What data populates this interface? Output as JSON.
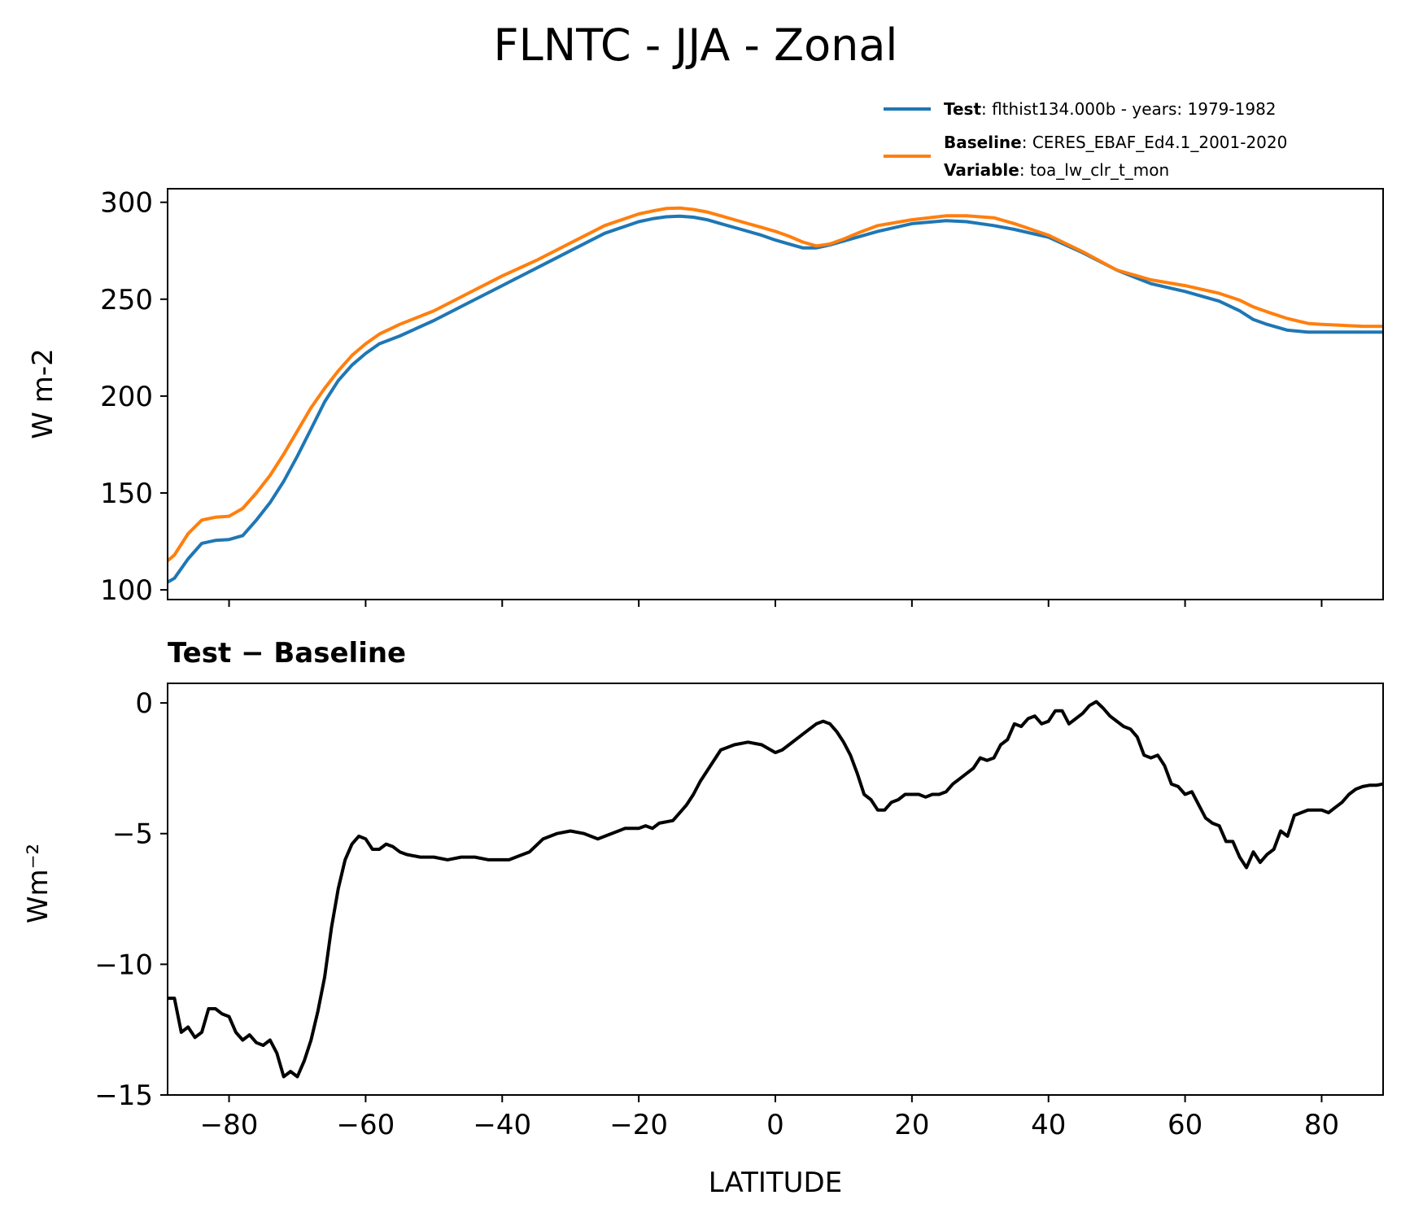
{
  "title": "FLNTC - JJA - Zonal",
  "legend": {
    "test": {
      "key": "Test",
      "text": ": flthist134.000b - years: 1979-1982"
    },
    "baseline": {
      "key": "Baseline",
      "text": ": CERES_EBAF_Ed4.1_2001-2020"
    },
    "variable": {
      "key": "Variable",
      "text": ": toa_lw_clr_t_mon"
    }
  },
  "colors": {
    "test": "#1f77b4",
    "baseline": "#ff7f0e",
    "diff": "#000000"
  },
  "chart_data": [
    {
      "type": "line",
      "title": "",
      "xlabel": "",
      "ylabel": "W m-2",
      "xlim": [
        -89,
        89
      ],
      "ylim": [
        95,
        307
      ],
      "yticks": [
        100,
        150,
        200,
        250,
        300
      ],
      "xticks": [
        -80,
        -60,
        -40,
        -20,
        0,
        20,
        40,
        60,
        80
      ],
      "legend_position": "above-right",
      "grid": false,
      "x": [
        -89,
        -88,
        -86,
        -84,
        -82,
        -80,
        -78,
        -76,
        -74,
        -72,
        -70,
        -68,
        -66,
        -64,
        -62,
        -60,
        -58,
        -55,
        -50,
        -45,
        -40,
        -35,
        -30,
        -25,
        -20,
        -18,
        -16,
        -14,
        -12,
        -10,
        -8,
        -5,
        -2,
        0,
        2,
        4,
        6,
        8,
        10,
        12,
        15,
        20,
        25,
        28,
        32,
        35,
        40,
        45,
        50,
        55,
        60,
        65,
        68,
        70,
        72,
        75,
        78,
        80,
        83,
        86,
        89
      ],
      "series": [
        {
          "name": "Test",
          "values": [
            104,
            106,
            116,
            124,
            125.5,
            126,
            128,
            136,
            145,
            156,
            169,
            183,
            197,
            208,
            216,
            222,
            227,
            231,
            239,
            248,
            257,
            266,
            275,
            284,
            290,
            291.5,
            292.5,
            292.8,
            292.3,
            291,
            289,
            286,
            283,
            280.5,
            278.5,
            276.5,
            276.5,
            278,
            280,
            282,
            285,
            289,
            290.5,
            290,
            288,
            286,
            282,
            274,
            265,
            258,
            254,
            249,
            244,
            239.5,
            237,
            234,
            233,
            233,
            233,
            233,
            233
          ]
        },
        {
          "name": "Baseline",
          "values": [
            115,
            118,
            129,
            136,
            137.5,
            138,
            142,
            150,
            159,
            170,
            182,
            194,
            204,
            213,
            221,
            227,
            232,
            237,
            244,
            253,
            262,
            270,
            279,
            288,
            294,
            295.5,
            296.8,
            297,
            296.3,
            295,
            293,
            290,
            287,
            285,
            282.5,
            279.5,
            277.5,
            278.5,
            281,
            284,
            288,
            291,
            293,
            293,
            292,
            289,
            283,
            274.5,
            265,
            260,
            257,
            253,
            249.5,
            246,
            243.5,
            240,
            237.5,
            237,
            236.5,
            236,
            236
          ]
        }
      ]
    },
    {
      "type": "line",
      "title": "Test − Baseline",
      "xlabel": "LATITUDE",
      "ylabel": "Wm⁻²",
      "xlim": [
        -89,
        89
      ],
      "ylim": [
        -15,
        0.75
      ],
      "yticks": [
        0,
        -5,
        -10,
        -15
      ],
      "yticklabels": [
        "0",
        "−5",
        "−10",
        "−15"
      ],
      "xticks": [
        -80,
        -60,
        -40,
        -20,
        0,
        20,
        40,
        60,
        80
      ],
      "xticklabels": [
        "−80",
        "−60",
        "−40",
        "−20",
        "0",
        "20",
        "40",
        "60",
        "80"
      ],
      "grid": false,
      "x": [
        -89,
        -88,
        -87,
        -86,
        -85,
        -84,
        -83,
        -82,
        -81,
        -80,
        -79,
        -78,
        -77,
        -76,
        -75,
        -74,
        -73,
        -72,
        -71,
        -70,
        -69,
        -68,
        -67,
        -66,
        -65,
        -64,
        -63,
        -62,
        -61,
        -60,
        -59,
        -58,
        -57,
        -56,
        -55,
        -54,
        -52,
        -50,
        -48,
        -46,
        -44,
        -42,
        -40,
        -39,
        -38,
        -36,
        -34,
        -32,
        -30,
        -28,
        -26,
        -24,
        -22,
        -20,
        -19,
        -18,
        -17,
        -15,
        -13,
        -12,
        -11,
        -10,
        -8,
        -6,
        -4,
        -2,
        0,
        1,
        2,
        4,
        6,
        7,
        8,
        9,
        10,
        11,
        12,
        13,
        14,
        15,
        16,
        17,
        18,
        19,
        20,
        21,
        22,
        23,
        24,
        25,
        26,
        27,
        28,
        29,
        30,
        31,
        32,
        33,
        34,
        35,
        36,
        37,
        38,
        39,
        40,
        41,
        42,
        43,
        44,
        45,
        46,
        47,
        48,
        49,
        50,
        51,
        52,
        53,
        54,
        55,
        56,
        57,
        58,
        59,
        60,
        61,
        62,
        63,
        64,
        65,
        66,
        67,
        68,
        69,
        70,
        71,
        72,
        73,
        74,
        75,
        76,
        77,
        78,
        79,
        80,
        81,
        82,
        83,
        84,
        85,
        86,
        87,
        88,
        89
      ],
      "series": [
        {
          "name": "",
          "values": [
            -11.3,
            -11.3,
            -12.6,
            -12.4,
            -12.8,
            -12.6,
            -11.7,
            -11.7,
            -11.9,
            -12.0,
            -12.6,
            -12.9,
            -12.7,
            -13.0,
            -13.1,
            -12.9,
            -13.4,
            -14.3,
            -14.1,
            -14.3,
            -13.7,
            -12.9,
            -11.8,
            -10.5,
            -8.6,
            -7.1,
            -6.0,
            -5.4,
            -5.1,
            -5.2,
            -5.6,
            -5.6,
            -5.4,
            -5.5,
            -5.7,
            -5.8,
            -5.9,
            -5.9,
            -6.0,
            -5.9,
            -5.9,
            -6.0,
            -6.0,
            -6.0,
            -5.9,
            -5.7,
            -5.2,
            -5.0,
            -4.9,
            -5.0,
            -5.2,
            -5.0,
            -4.8,
            -4.8,
            -4.7,
            -4.8,
            -4.6,
            -4.5,
            -3.9,
            -3.5,
            -3.0,
            -2.6,
            -1.8,
            -1.6,
            -1.5,
            -1.6,
            -1.9,
            -1.8,
            -1.6,
            -1.2,
            -0.8,
            -0.7,
            -0.8,
            -1.1,
            -1.5,
            -2.0,
            -2.7,
            -3.5,
            -3.7,
            -4.1,
            -4.1,
            -3.8,
            -3.7,
            -3.5,
            -3.5,
            -3.5,
            -3.6,
            -3.5,
            -3.5,
            -3.4,
            -3.1,
            -2.9,
            -2.7,
            -2.5,
            -2.1,
            -2.2,
            -2.1,
            -1.6,
            -1.4,
            -0.8,
            -0.9,
            -0.6,
            -0.5,
            -0.8,
            -0.7,
            -0.3,
            -0.3,
            -0.8,
            -0.6,
            -0.4,
            -0.1,
            0.05,
            -0.2,
            -0.5,
            -0.7,
            -0.9,
            -1.0,
            -1.3,
            -2.0,
            -2.1,
            -2.0,
            -2.4,
            -3.1,
            -3.2,
            -3.5,
            -3.4,
            -3.9,
            -4.4,
            -4.6,
            -4.7,
            -5.3,
            -5.3,
            -5.9,
            -6.3,
            -5.7,
            -6.1,
            -5.8,
            -5.6,
            -4.9,
            -5.1,
            -4.3,
            -4.2,
            -4.1,
            -4.1,
            -4.1,
            -4.2,
            -4.0,
            -3.8,
            -3.5,
            -3.3,
            -3.2,
            -3.15,
            -3.15,
            -3.1
          ]
        }
      ]
    }
  ]
}
